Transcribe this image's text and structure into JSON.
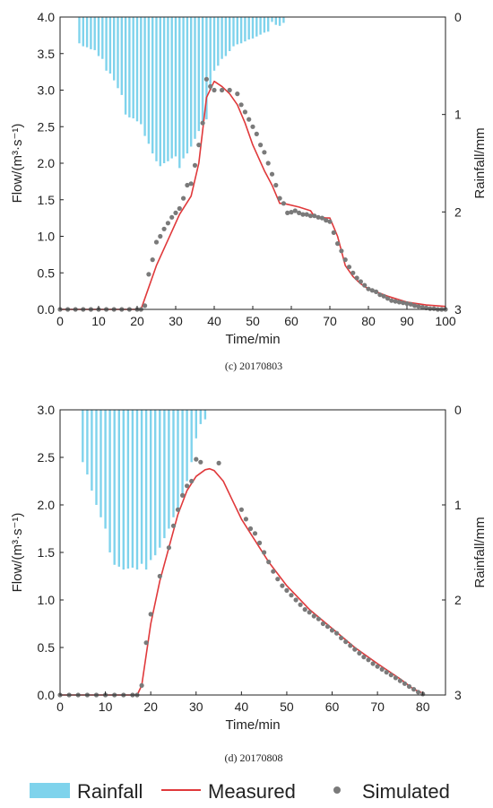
{
  "colors": {
    "rainfall": "#7fd3ec",
    "measured": "#e0393b",
    "simulated": "#7a7a7a",
    "axis": "#222222"
  },
  "legend": {
    "rainfall_label": "Rainfall",
    "measured_label": "Measured",
    "simulated_label": "Simulated"
  },
  "chart_data": [
    {
      "type": "line",
      "caption": "(c) 20170803",
      "xlabel": "Time/min",
      "ylabel": "Flow/(m³·s⁻¹)",
      "y2label": "Rainfall/mm",
      "xlim": [
        0,
        100
      ],
      "ylim": [
        0,
        4.0
      ],
      "y2lim": [
        0,
        3
      ],
      "y2_inverted": true,
      "xticks": [
        "0",
        "10",
        "20",
        "30",
        "40",
        "50",
        "60",
        "70",
        "80",
        "90",
        "100"
      ],
      "yticks": [
        "0.0",
        "0.5",
        "1.0",
        "1.5",
        "2.0",
        "2.5",
        "3.0",
        "3.5",
        "4.0"
      ],
      "y2ticks": [
        "0",
        "1",
        "2",
        "3"
      ],
      "rainfall": {
        "name": "Rainfall",
        "x": [
          5,
          6,
          7,
          8,
          9,
          10,
          11,
          12,
          13,
          14,
          15,
          16,
          17,
          18,
          19,
          20,
          21,
          22,
          23,
          24,
          25,
          26,
          27,
          28,
          29,
          30,
          31,
          32,
          33,
          34,
          35,
          36,
          37,
          38,
          39,
          40,
          41,
          42,
          43,
          44,
          45,
          46,
          47,
          48,
          49,
          50,
          51,
          52,
          53,
          54,
          55,
          56,
          57,
          58
        ],
        "values": [
          0.27,
          0.3,
          0.31,
          0.33,
          0.34,
          0.4,
          0.43,
          0.55,
          0.58,
          0.65,
          0.73,
          0.8,
          1.0,
          1.03,
          1.04,
          1.07,
          1.1,
          1.22,
          1.3,
          1.4,
          1.48,
          1.53,
          1.5,
          1.48,
          1.45,
          1.43,
          1.55,
          1.45,
          1.4,
          1.33,
          1.25,
          1.17,
          1.1,
          1.05,
          0.75,
          0.55,
          0.5,
          0.43,
          0.4,
          0.35,
          0.3,
          0.28,
          0.27,
          0.25,
          0.23,
          0.22,
          0.2,
          0.18,
          0.16,
          0.15,
          0.05,
          0.08,
          0.09,
          0.06
        ]
      },
      "measured": {
        "name": "Measured",
        "x": [
          0,
          21,
          22,
          25,
          28,
          31,
          34,
          36,
          38,
          40,
          42,
          44,
          46,
          48,
          50,
          53,
          55,
          57,
          58,
          62,
          65,
          66,
          69,
          70,
          72,
          74,
          76,
          78,
          80,
          85,
          90,
          95,
          100
        ],
        "values": [
          0,
          0,
          0.15,
          0.6,
          0.95,
          1.3,
          1.55,
          2.0,
          2.9,
          3.12,
          3.05,
          2.95,
          2.8,
          2.55,
          2.25,
          1.9,
          1.7,
          1.45,
          1.45,
          1.4,
          1.35,
          1.27,
          1.25,
          1.25,
          1.0,
          0.6,
          0.45,
          0.35,
          0.28,
          0.18,
          0.1,
          0.06,
          0.04
        ]
      },
      "simulated": {
        "name": "Simulated",
        "x": [
          0,
          2,
          4,
          6,
          8,
          10,
          12,
          14,
          16,
          18,
          20,
          21,
          22,
          23,
          24,
          25,
          26,
          27,
          28,
          29,
          30,
          31,
          32,
          33,
          34,
          35,
          36,
          37,
          38,
          39,
          40,
          42,
          44,
          46,
          47,
          48,
          49,
          50,
          51,
          52,
          53,
          54,
          55,
          56,
          57,
          58,
          59,
          60,
          61,
          62,
          63,
          64,
          65,
          66,
          67,
          68,
          69,
          70,
          71,
          72,
          73,
          74,
          75,
          76,
          77,
          78,
          79,
          80,
          81,
          82,
          83,
          84,
          85,
          86,
          87,
          88,
          89,
          90,
          91,
          92,
          93,
          94,
          95,
          96,
          97,
          98,
          99,
          100
        ],
        "values": [
          0,
          0,
          0,
          0,
          0,
          0,
          0,
          0,
          0,
          0,
          0,
          0,
          0.05,
          0.48,
          0.68,
          0.92,
          1.0,
          1.1,
          1.18,
          1.26,
          1.32,
          1.38,
          1.52,
          1.7,
          1.72,
          1.97,
          2.25,
          2.55,
          3.15,
          3.05,
          3.0,
          3.0,
          3.0,
          2.95,
          2.8,
          2.7,
          2.6,
          2.5,
          2.4,
          2.25,
          2.15,
          2.0,
          1.85,
          1.7,
          1.52,
          1.45,
          1.32,
          1.33,
          1.35,
          1.32,
          1.3,
          1.3,
          1.28,
          1.28,
          1.26,
          1.25,
          1.22,
          1.2,
          1.05,
          0.9,
          0.8,
          0.68,
          0.58,
          0.5,
          0.43,
          0.38,
          0.33,
          0.28,
          0.26,
          0.24,
          0.2,
          0.18,
          0.15,
          0.12,
          0.11,
          0.1,
          0.09,
          0.08,
          0.07,
          0.05,
          0.04,
          0.03,
          0.02,
          0.01,
          0.01,
          0,
          0,
          0
        ]
      }
    },
    {
      "type": "line",
      "caption": "(d) 20170808",
      "xlabel": "Time/min",
      "ylabel": "Flow/(m³·s⁻¹)",
      "y2label": "Rainfall/mm",
      "xlim": [
        0,
        85
      ],
      "ylim": [
        0,
        3.0
      ],
      "y2lim": [
        0,
        3
      ],
      "y2_inverted": true,
      "xticks": [
        "0",
        "10",
        "20",
        "30",
        "40",
        "50",
        "60",
        "70",
        "80"
      ],
      "yticks": [
        "0.0",
        "0.5",
        "1.0",
        "1.5",
        "2.0",
        "2.5",
        "3.0"
      ],
      "y2ticks": [
        "0",
        "1",
        "2",
        "3"
      ],
      "rainfall": {
        "name": "Rainfall",
        "x": [
          5,
          6,
          7,
          8,
          9,
          10,
          11,
          12,
          13,
          14,
          15,
          16,
          17,
          18,
          19,
          20,
          21,
          22,
          23,
          24,
          25,
          26,
          27,
          28,
          29,
          30,
          31,
          32
        ],
        "values": [
          0.55,
          0.68,
          0.85,
          1.0,
          1.13,
          1.25,
          1.5,
          1.63,
          1.65,
          1.68,
          1.67,
          1.66,
          1.68,
          1.62,
          1.68,
          1.58,
          1.53,
          1.45,
          1.35,
          1.25,
          1.13,
          1.03,
          0.88,
          0.75,
          0.55,
          0.3,
          0.15,
          0.1
        ]
      },
      "measured": {
        "name": "Measured",
        "x": [
          0,
          17,
          18,
          20,
          22,
          24,
          26,
          28,
          30,
          32,
          33,
          34,
          36,
          38,
          40,
          42,
          44,
          46,
          50,
          55,
          60,
          65,
          70,
          75,
          78,
          80
        ],
        "values": [
          0,
          0,
          0.1,
          0.75,
          1.2,
          1.55,
          1.9,
          2.15,
          2.3,
          2.37,
          2.38,
          2.36,
          2.25,
          2.05,
          1.85,
          1.7,
          1.55,
          1.4,
          1.15,
          0.9,
          0.7,
          0.5,
          0.33,
          0.17,
          0.06,
          0.02
        ]
      },
      "simulated": {
        "name": "Simulated",
        "x": [
          0,
          2,
          4,
          6,
          8,
          10,
          12,
          14,
          16,
          17,
          18,
          19,
          20,
          22,
          24,
          25,
          26,
          27,
          28,
          29,
          30,
          31,
          35,
          40,
          41,
          42,
          43,
          44,
          45,
          46,
          47,
          48,
          49,
          50,
          51,
          52,
          53,
          54,
          55,
          56,
          57,
          58,
          59,
          60,
          61,
          62,
          63,
          64,
          65,
          66,
          67,
          68,
          69,
          70,
          71,
          72,
          73,
          74,
          75,
          76,
          77,
          78,
          79,
          80
        ],
        "values": [
          0,
          0,
          0,
          0,
          0,
          0,
          0,
          0,
          0,
          0,
          0.1,
          0.55,
          0.85,
          1.25,
          1.55,
          1.78,
          1.95,
          2.1,
          2.2,
          2.25,
          2.48,
          2.45,
          2.44,
          1.95,
          1.85,
          1.75,
          1.7,
          1.6,
          1.5,
          1.4,
          1.3,
          1.22,
          1.15,
          1.1,
          1.05,
          1.0,
          0.95,
          0.9,
          0.87,
          0.83,
          0.8,
          0.75,
          0.72,
          0.68,
          0.65,
          0.6,
          0.56,
          0.52,
          0.48,
          0.44,
          0.4,
          0.37,
          0.33,
          0.3,
          0.27,
          0.24,
          0.21,
          0.18,
          0.15,
          0.12,
          0.09,
          0.06,
          0.03,
          0.01
        ]
      }
    }
  ]
}
